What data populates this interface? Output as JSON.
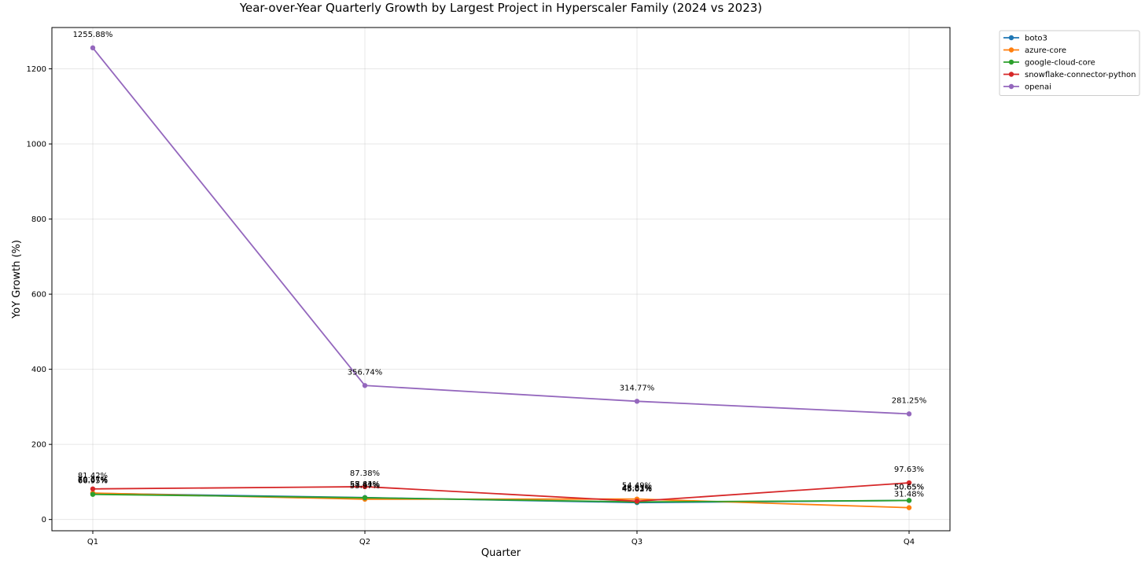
{
  "chart_data": {
    "type": "line",
    "title": "Year-over-Year Quarterly Growth by Largest Project in Hyperscaler Family (2024 vs 2023)",
    "xlabel": "Quarter",
    "ylabel": "YoY Growth (%)",
    "categories": [
      "Q1",
      "Q2",
      "Q3",
      "Q4"
    ],
    "ylim": [
      -30,
      1310
    ],
    "yticks": [
      0,
      200,
      400,
      600,
      800,
      1000,
      1200
    ],
    "grid": true,
    "legend_position": "outside-top-right",
    "series": [
      {
        "name": "boto3",
        "color": "#1f77b4",
        "values": [
          69.67,
          58.44,
          45.02,
          50.65
        ],
        "labels": [
          "69.67%",
          "58.44%",
          "45.02%",
          "50.65%"
        ]
      },
      {
        "name": "azure-core",
        "color": "#ff7f0e",
        "values": [
          70.37,
          53.97,
          54.49,
          31.48
        ],
        "labels": [
          "70.37%",
          "53.97%",
          "54.49%",
          "31.48%"
        ]
      },
      {
        "name": "google-cloud-core",
        "color": "#2ca02c",
        "values": [
          66.95,
          57.81,
          46.83,
          50.65
        ],
        "labels": [
          "66.95%",
          "57.81%",
          "46.83%",
          "50.65%"
        ]
      },
      {
        "name": "snowflake-connector-python",
        "color": "#d62728",
        "values": [
          81.42,
          87.38,
          48.81,
          97.63
        ],
        "labels": [
          "81.42%",
          "87.38%",
          "48.81%",
          "97.63%"
        ]
      },
      {
        "name": "openai",
        "color": "#9467bd",
        "values": [
          1255.88,
          356.74,
          314.77,
          281.25
        ],
        "labels": [
          "1255.88%",
          "356.74%",
          "314.77%",
          "281.25%"
        ]
      }
    ]
  }
}
